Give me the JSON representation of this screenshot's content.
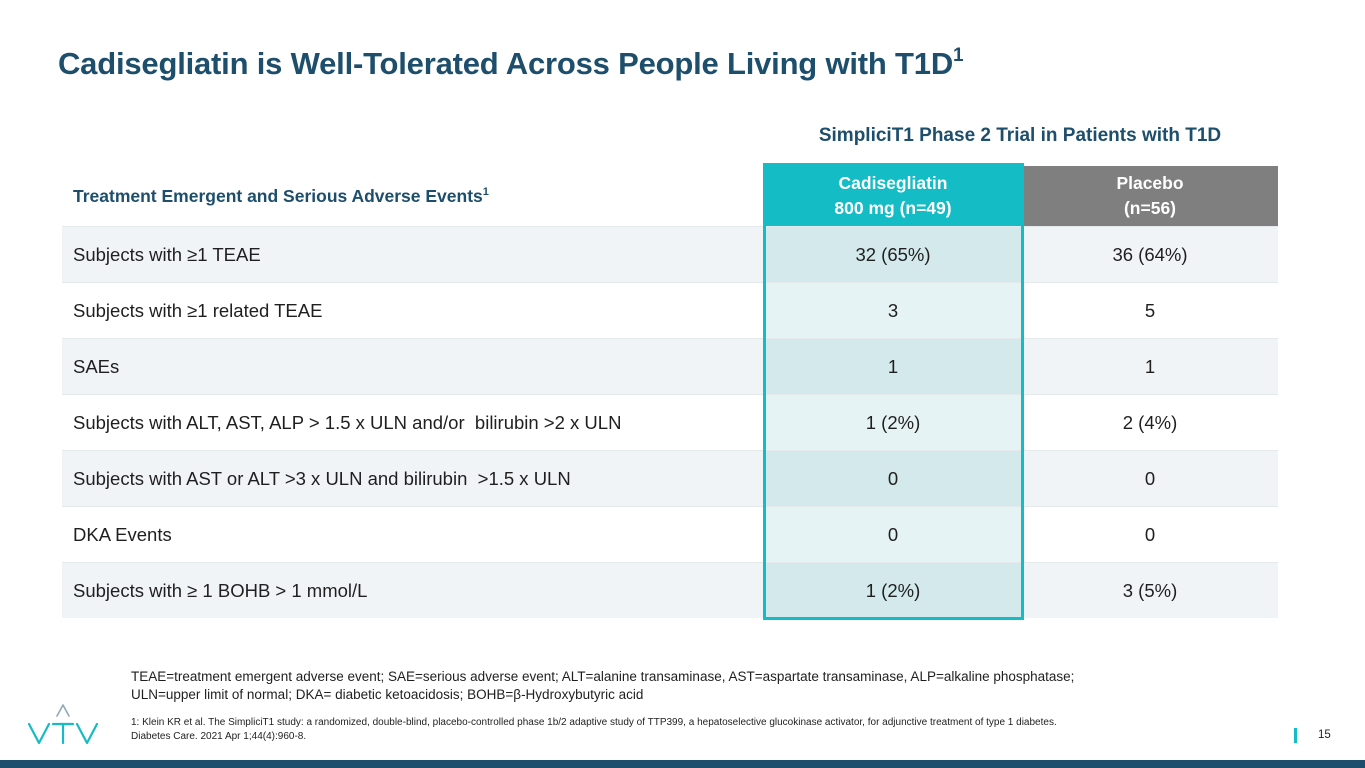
{
  "slide": {
    "title": "Cadisegliatin is Well-Tolerated Across People Living with T1D",
    "title_superscript": "1",
    "trial_heading": "SimpliciT1 Phase 2 Trial in Patients with T1D",
    "page_number": "15"
  },
  "table": {
    "label_header": "Treatment Emergent and Serious Adverse Events",
    "label_header_superscript": "1",
    "drug_header_line1": "Cadisegliatin",
    "drug_header_line2": "800 mg (n=49)",
    "placebo_header_line1": "Placebo",
    "placebo_header_line2": "(n=56)",
    "rows": [
      {
        "label": "Subjects with ≥1 TEAE",
        "drug": "32 (65%)",
        "placebo": "36 (64%)"
      },
      {
        "label": "Subjects with ≥1 related TEAE",
        "drug": "3",
        "placebo": "5"
      },
      {
        "label": "SAEs",
        "drug": "1",
        "placebo": "1"
      },
      {
        "label": "Subjects with ALT, AST, ALP > 1.5 x ULN and/or  bilirubin >2 x ULN",
        "drug": "1 (2%)",
        "placebo": "2 (4%)"
      },
      {
        "label": "Subjects with AST or ALT >3 x ULN and bilirubin  >1.5 x ULN",
        "drug": "0",
        "placebo": "0"
      },
      {
        "label": "DKA Events",
        "drug": "0",
        "placebo": "0"
      },
      {
        "label": "Subjects with ≥ 1 BOHB > 1 mmol/L",
        "drug": "1 (2%)",
        "placebo": "3 (5%)"
      }
    ]
  },
  "footnotes": {
    "abbreviations_line1": "TEAE=treatment emergent adverse event; SAE=serious adverse event; ALT=alanine transaminase, AST=aspartate transaminase, ALP=alkaline phosphatase;",
    "abbreviations_line2": "ULN=upper limit of normal; DKA= diabetic ketoacidosis; BOHB=β-Hydroxybutyric acid",
    "reference_line1": "1: Klein KR et al. The SimpliciT1 study: a randomized, double-blind, placebo-controlled phase 1b/2 adaptive study of TTP399, a hepatoselective glucokinase activator, for adjunctive treatment of type 1 diabetes.",
    "reference_line2": "Diabetes Care. 2021 Apr 1;44(4):960-8."
  },
  "logo": {
    "icon": "vtv-logo-icon",
    "text": "VTV"
  },
  "colors": {
    "title": "#1d4e6b",
    "accent_teal": "#14bcc6",
    "placebo_gray": "#7f7f7f",
    "footer_band": "#1d4e6b"
  }
}
